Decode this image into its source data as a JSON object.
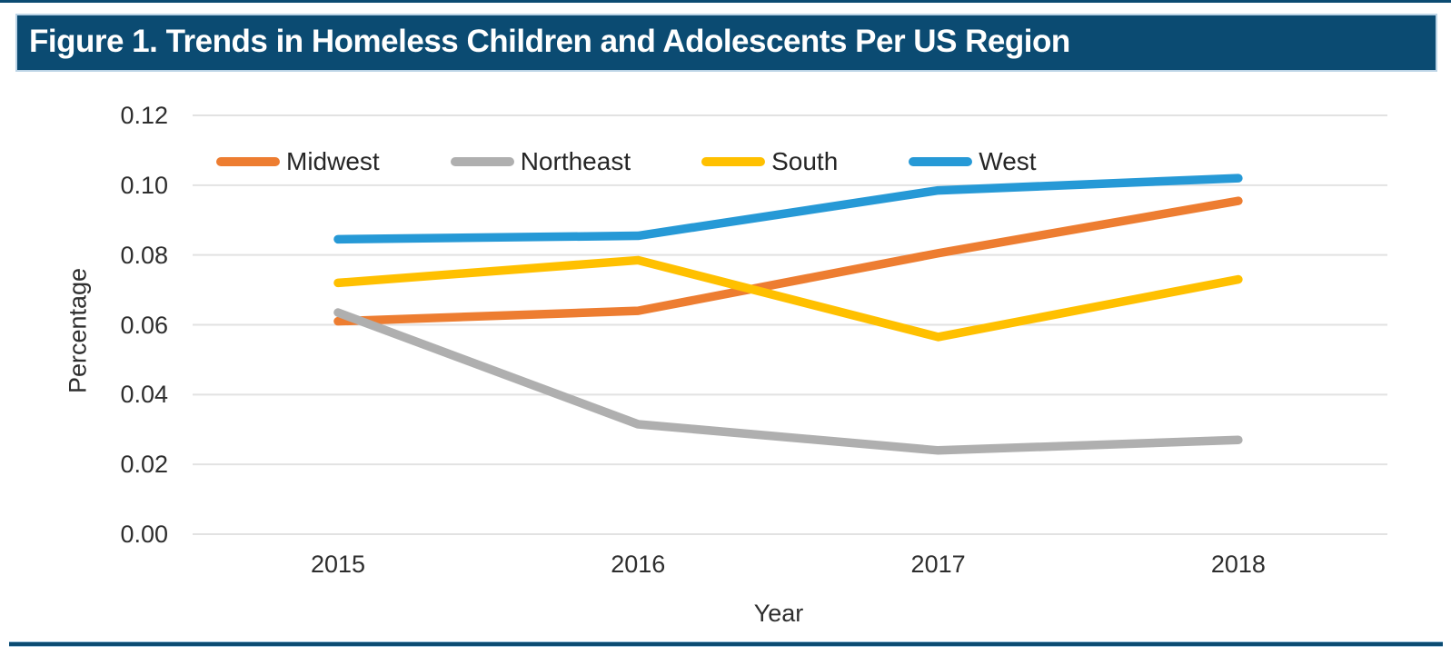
{
  "page": {
    "title": "Figure 1. Trends in Homeless Children and Adolescents Per US Region"
  },
  "colors": {
    "header_bg": "#0b4b72",
    "header_text": "#ffffff",
    "rule": "#0b4b72",
    "rule_edge": "#9cc2dc",
    "gridline": "#e2e2e2",
    "axis_text": "#2e2e2e"
  },
  "chart_data": {
    "type": "line",
    "title": "Figure 1. Trends in Homeless Children and Adolescents Per US Region",
    "x": [
      "2015",
      "2016",
      "2017",
      "2018"
    ],
    "xlabel": "Year",
    "ylabel": "Percentage",
    "ylim": [
      0,
      0.12
    ],
    "ytick_step": 0.02,
    "yticks": [
      "0.12",
      "0.10",
      "0.08",
      "0.06",
      "0.04",
      "0.02",
      "0.00"
    ],
    "grid": true,
    "legend_position": "top-inside-horizontal",
    "series": [
      {
        "name": "Midwest",
        "color": "#ed7d31",
        "values": [
          0.061,
          0.064,
          0.0805,
          0.0955
        ]
      },
      {
        "name": "Northeast",
        "color": "#afafaf",
        "values": [
          0.0635,
          0.0315,
          0.024,
          0.027
        ]
      },
      {
        "name": "South",
        "color": "#ffc000",
        "values": [
          0.072,
          0.0785,
          0.0565,
          0.073
        ]
      },
      {
        "name": "West",
        "color": "#2699d6",
        "values": [
          0.0845,
          0.0855,
          0.0985,
          0.102
        ]
      }
    ]
  }
}
